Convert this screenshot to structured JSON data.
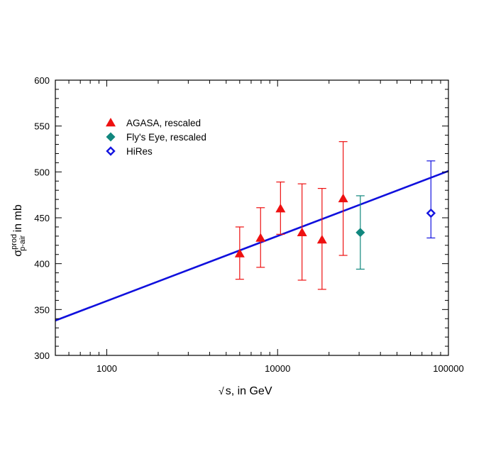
{
  "chart_data": {
    "type": "scatter",
    "xscale": "log",
    "xlim": [
      500,
      100000
    ],
    "ylim": [
      300,
      600
    ],
    "grid": false,
    "legend_position": "top-left",
    "xlabel": {
      "root": "√",
      "text": "s, in GeV"
    },
    "ylabel": {
      "symbol": "σ",
      "sup": "prod",
      "sub": "p-air",
      "text": " in mb"
    },
    "x_ticks": [
      {
        "value": 1000,
        "label": "1000"
      },
      {
        "value": 10000,
        "label": "10000"
      },
      {
        "value": 100000,
        "label": "100000"
      }
    ],
    "y_ticks": [
      {
        "value": 300,
        "label": "300"
      },
      {
        "value": 350,
        "label": "350"
      },
      {
        "value": 400,
        "label": "400"
      },
      {
        "value": 450,
        "label": "450"
      },
      {
        "value": 500,
        "label": "500"
      },
      {
        "value": 550,
        "label": "550"
      },
      {
        "value": 600,
        "label": "600"
      }
    ],
    "fit_line": {
      "color": "#1010dd",
      "x": [
        500,
        100000
      ],
      "y": [
        338,
        501
      ]
    },
    "series": [
      {
        "name": "AGASA,   rescaled",
        "marker": "triangle",
        "color": "#ee1111",
        "points": [
          {
            "x": 6000,
            "y": 411,
            "ylow": 383,
            "yhigh": 440
          },
          {
            "x": 7950,
            "y": 428,
            "ylow": 396,
            "yhigh": 461
          },
          {
            "x": 10400,
            "y": 460,
            "ylow": 432,
            "yhigh": 489
          },
          {
            "x": 13900,
            "y": 434,
            "ylow": 382,
            "yhigh": 487
          },
          {
            "x": 18200,
            "y": 426,
            "ylow": 372,
            "yhigh": 482
          },
          {
            "x": 24200,
            "y": 471,
            "ylow": 409,
            "yhigh": 533
          }
        ]
      },
      {
        "name": "Fly's Eye, rescaled",
        "marker": "diamond-filled",
        "color": "#11877e",
        "points": [
          {
            "x": 30500,
            "y": 434,
            "ylow": 394,
            "yhigh": 474
          }
        ]
      },
      {
        "name": "HiRes",
        "marker": "diamond-open",
        "color": "#1515e0",
        "points": [
          {
            "x": 79000,
            "y": 455,
            "ylow": 428,
            "yhigh": 512
          }
        ]
      }
    ]
  }
}
